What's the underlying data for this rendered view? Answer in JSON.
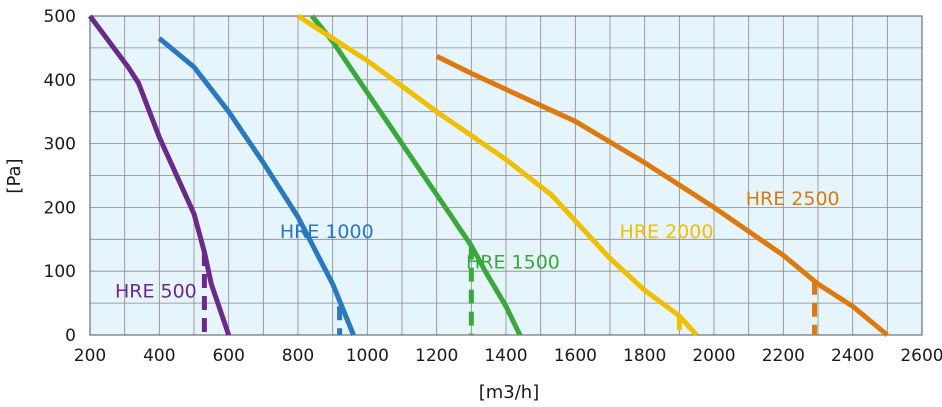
{
  "chart_data": {
    "type": "line",
    "xlabel": "[m3/h]",
    "ylabel": "[Pa]",
    "xlim": [
      200,
      2600
    ],
    "ylim": [
      0,
      500
    ],
    "x_ticks": [
      200,
      400,
      600,
      800,
      1000,
      1200,
      1400,
      1600,
      1800,
      2000,
      2200,
      2400,
      2600
    ],
    "y_ticks": [
      0,
      100,
      200,
      300,
      400,
      500
    ],
    "grid": true,
    "background": "#e6f4fb",
    "series": [
      {
        "name": "HRE 500",
        "color": "#6b2a8a",
        "points": [
          [
            200,
            500
          ],
          [
            310,
            420
          ],
          [
            340,
            395
          ],
          [
            400,
            310
          ],
          [
            500,
            190
          ],
          [
            530,
            130
          ],
          [
            550,
            80
          ],
          [
            600,
            0
          ]
        ],
        "dashed_drop": {
          "x": 530,
          "y_from": 130,
          "y_to": 0
        }
      },
      {
        "name": "HRE 1000",
        "color": "#2a78c0",
        "points": [
          [
            400,
            465
          ],
          [
            500,
            420
          ],
          [
            600,
            350
          ],
          [
            700,
            270
          ],
          [
            800,
            185
          ],
          [
            900,
            80
          ],
          [
            960,
            0
          ]
        ],
        "dashed_drop": {
          "x": 920,
          "y_from": 45,
          "y_to": 0
        }
      },
      {
        "name": "HRE 1500",
        "color": "#3aa83a",
        "points": [
          [
            840,
            500
          ],
          [
            900,
            460
          ],
          [
            1000,
            380
          ],
          [
            1100,
            300
          ],
          [
            1200,
            220
          ],
          [
            1300,
            140
          ],
          [
            1340,
            100
          ],
          [
            1400,
            45
          ],
          [
            1440,
            0
          ]
        ],
        "dashed_drop": {
          "x": 1300,
          "y_from": 140,
          "y_to": 0
        }
      },
      {
        "name": "HRE 2000",
        "color": "#efbf00",
        "points": [
          [
            800,
            500
          ],
          [
            1000,
            430
          ],
          [
            1200,
            350
          ],
          [
            1400,
            275
          ],
          [
            1530,
            220
          ],
          [
            1700,
            120
          ],
          [
            1800,
            70
          ],
          [
            1900,
            30
          ],
          [
            1950,
            0
          ]
        ],
        "dashed_drop": {
          "x": 1900,
          "y_from": 30,
          "y_to": 0
        }
      },
      {
        "name": "HRE 2500",
        "color": "#dc7a0f",
        "points": [
          [
            1200,
            437
          ],
          [
            1300,
            410
          ],
          [
            1400,
            385
          ],
          [
            1600,
            335
          ],
          [
            1800,
            270
          ],
          [
            2000,
            200
          ],
          [
            2200,
            125
          ],
          [
            2300,
            80
          ],
          [
            2400,
            45
          ],
          [
            2500,
            0
          ]
        ],
        "dashed_drop": {
          "x": 2290,
          "y_from": 85,
          "y_to": 0
        }
      }
    ],
    "labels": [
      {
        "text": "HRE 500",
        "x": 390,
        "y": 70,
        "color": "#6b2a8a"
      },
      {
        "text": "HRE 1000",
        "x": 883,
        "y": 163,
        "color": "#2a78c0"
      },
      {
        "text": "HRE 1500",
        "x": 1420,
        "y": 115,
        "color": "#3aa83a"
      },
      {
        "text": "HRE 2000",
        "x": 1863,
        "y": 163,
        "color": "#efbf00"
      },
      {
        "text": "HRE 2500",
        "x": 2227,
        "y": 215,
        "color": "#dc7a0f"
      }
    ]
  }
}
